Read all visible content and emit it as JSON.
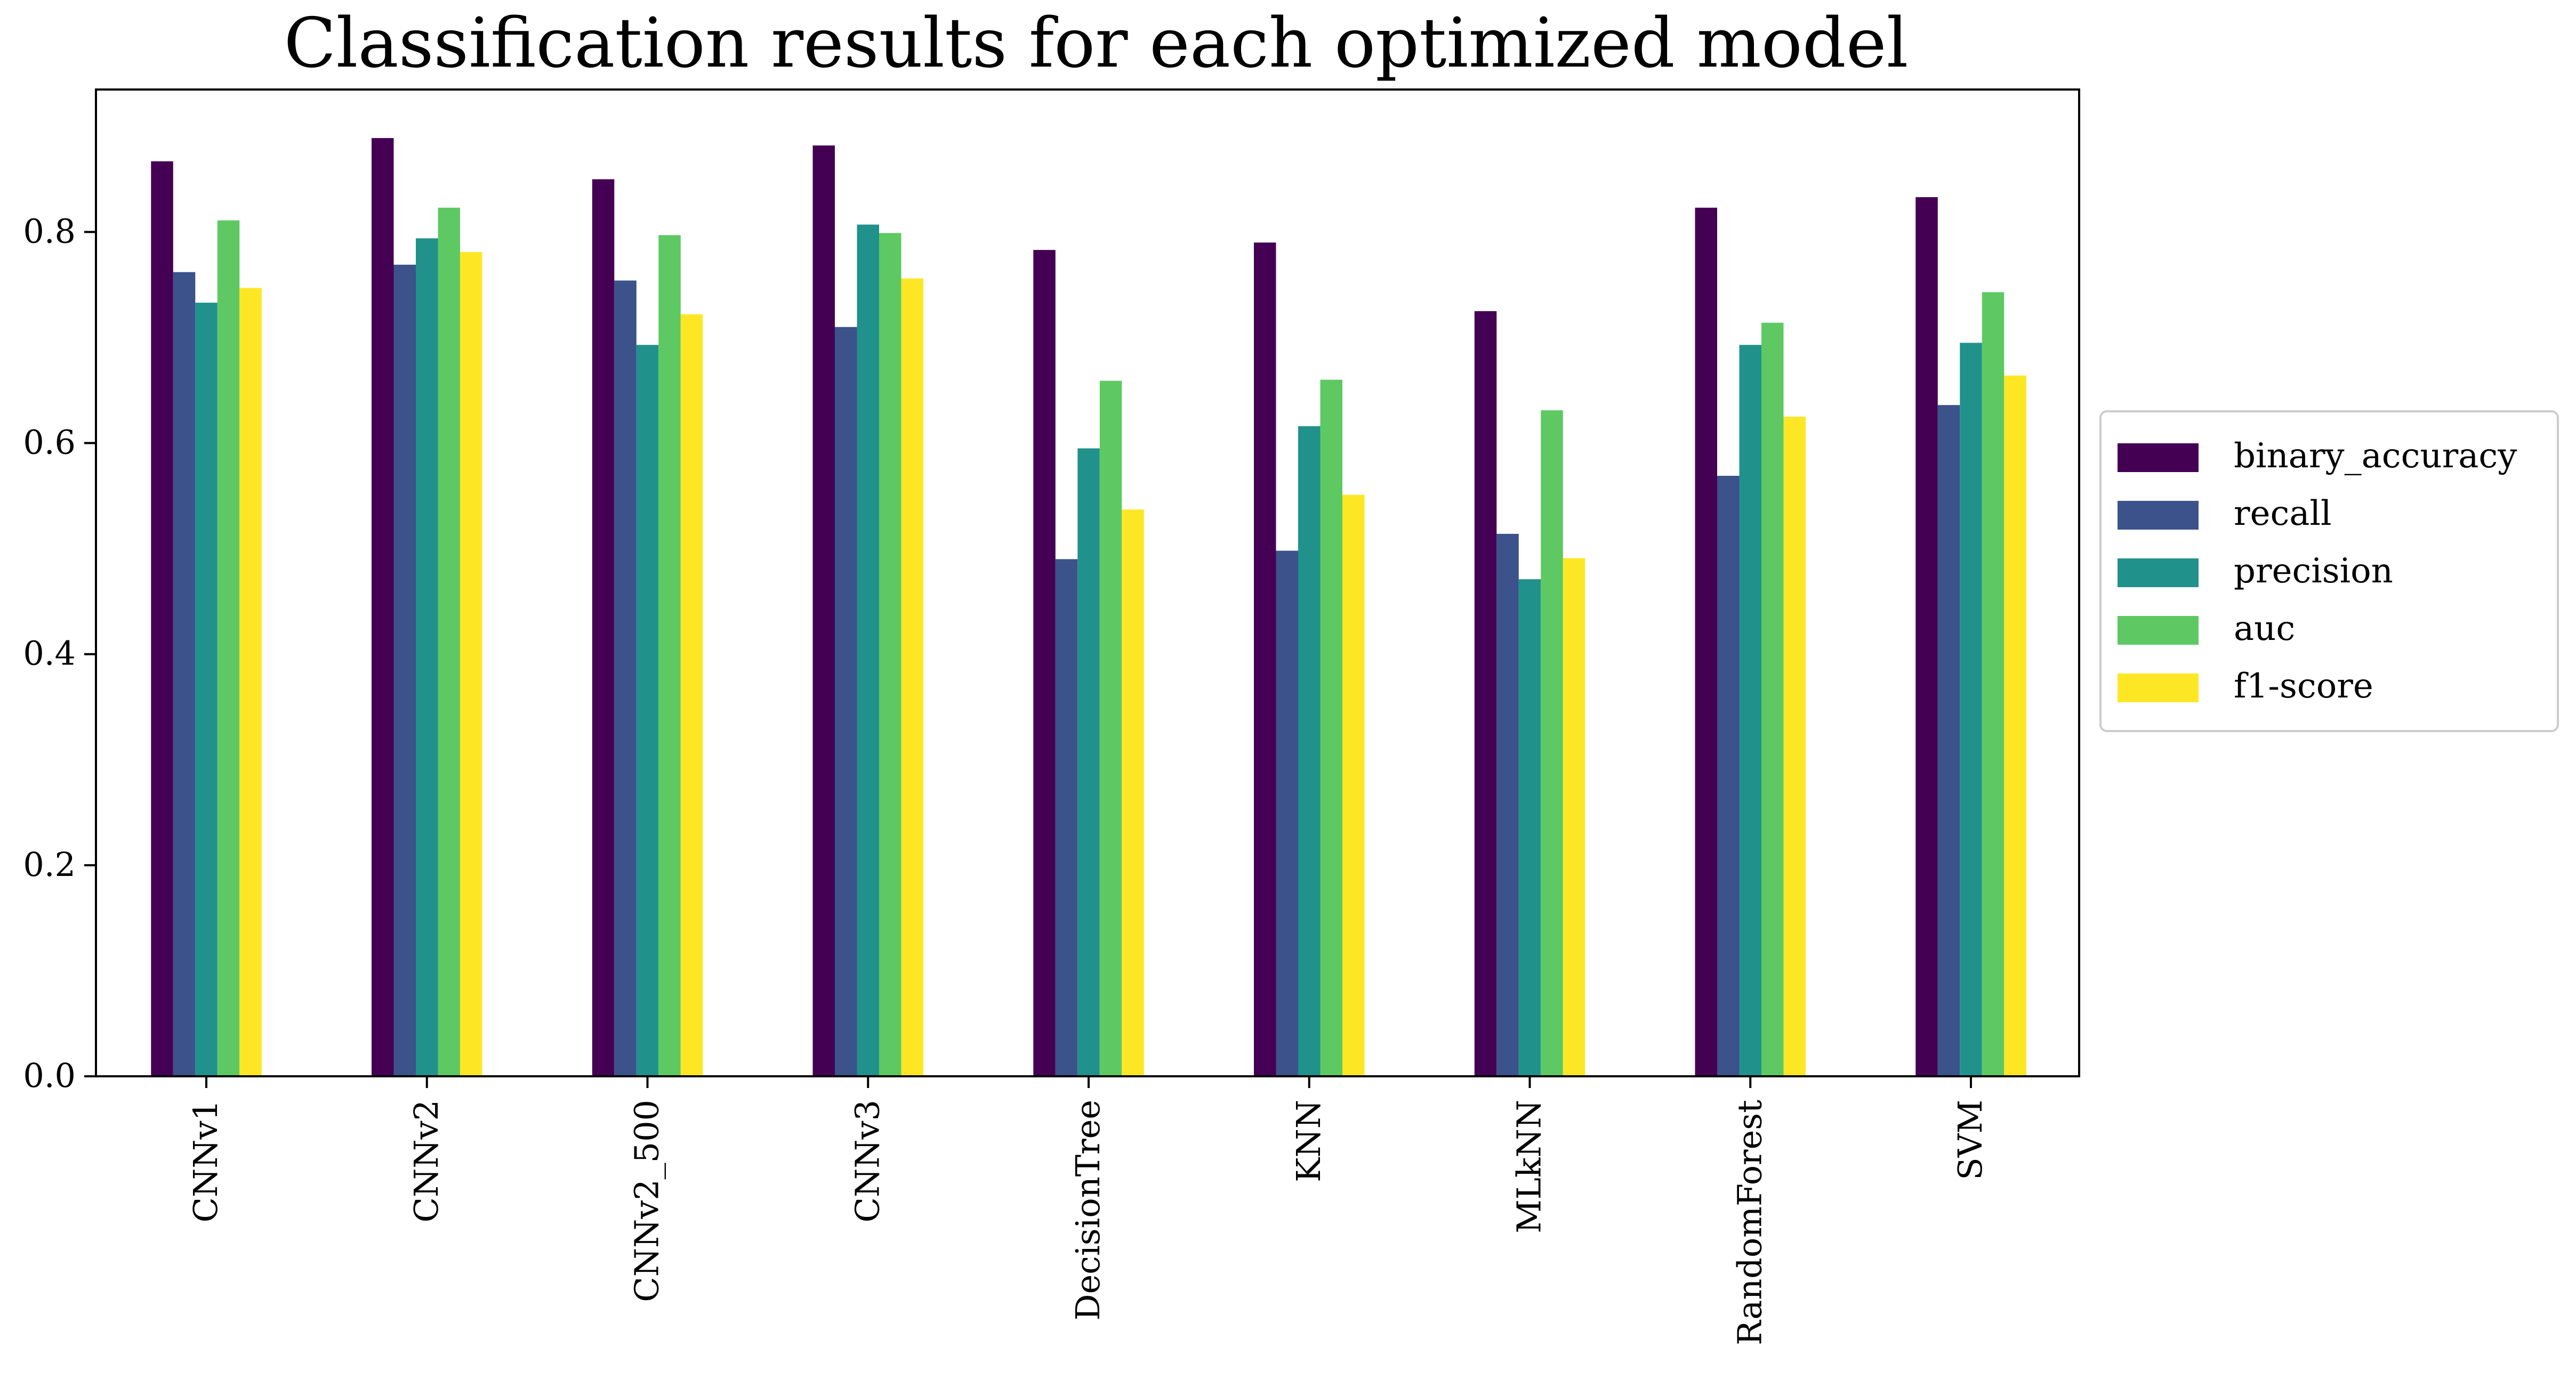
{
  "chart_data": {
    "type": "bar",
    "title": "Classification results for each optimized model",
    "xlabel": "",
    "ylabel": "",
    "categories": [
      "CNNv1",
      "CNNv2",
      "CNNv2_500",
      "CNNv3",
      "DecisionTree",
      "KNN",
      "MLkNN",
      "RandomForest",
      "SVM"
    ],
    "ylim": [
      0,
      0.935
    ],
    "yticks": [
      "0.0",
      "0.2",
      "0.4",
      "0.6",
      "0.8"
    ],
    "legend_position": "right",
    "grid": false,
    "series": [
      {
        "name": "binary_accuracy",
        "color": "#440154",
        "values": [
          0.867,
          0.889,
          0.85,
          0.882,
          0.783,
          0.79,
          0.725,
          0.823,
          0.833
        ]
      },
      {
        "name": "recall",
        "color": "#3b528b",
        "values": [
          0.762,
          0.769,
          0.754,
          0.71,
          0.49,
          0.498,
          0.514,
          0.569,
          0.636
        ]
      },
      {
        "name": "precision",
        "color": "#21918c",
        "values": [
          0.733,
          0.794,
          0.693,
          0.807,
          0.595,
          0.616,
          0.471,
          0.693,
          0.695
        ]
      },
      {
        "name": "auc",
        "color": "#5ec962",
        "values": [
          0.811,
          0.823,
          0.797,
          0.799,
          0.659,
          0.66,
          0.631,
          0.714,
          0.743
        ]
      },
      {
        "name": "f1-score",
        "color": "#fde725",
        "values": [
          0.747,
          0.781,
          0.722,
          0.756,
          0.537,
          0.551,
          0.491,
          0.625,
          0.664
        ]
      }
    ]
  }
}
